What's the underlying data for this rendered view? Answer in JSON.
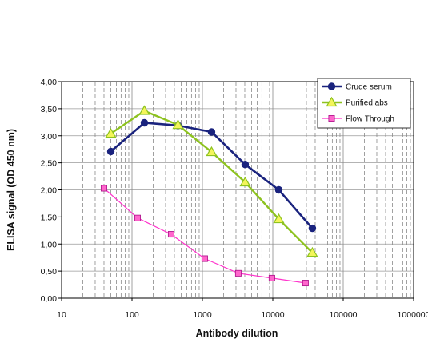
{
  "chart_data": {
    "type": "line",
    "title": "",
    "xlabel": "Antibody dilution",
    "ylabel": "ELISA signal (OD 450 nm)",
    "x_scale": "log",
    "xlim": [
      10,
      1000000
    ],
    "ylim": [
      0,
      4
    ],
    "x_ticks": [
      {
        "value": 10,
        "label": "10"
      },
      {
        "value": 100,
        "label": "100"
      },
      {
        "value": 1000,
        "label": "1000"
      },
      {
        "value": 10000,
        "label": "10000"
      },
      {
        "value": 100000,
        "label": "100000"
      },
      {
        "value": 1000000,
        "label": "1000000"
      }
    ],
    "y_ticks": [
      {
        "value": 0,
        "label": "0,00"
      },
      {
        "value": 0.5,
        "label": "0,50"
      },
      {
        "value": 1.0,
        "label": "1,00"
      },
      {
        "value": 1.5,
        "label": "1,50"
      },
      {
        "value": 2.0,
        "label": "2,00"
      },
      {
        "value": 2.5,
        "label": "2,50"
      },
      {
        "value": 3.0,
        "label": "3,00"
      },
      {
        "value": 3.5,
        "label": "3,50"
      },
      {
        "value": 4.0,
        "label": "4,00"
      }
    ],
    "grid": {
      "x_major": true,
      "x_minor": true,
      "y_major": true
    },
    "legend_position": "top-right",
    "series": [
      {
        "name": "Crude serum",
        "color": "#1a237e",
        "marker": "circle",
        "points": [
          {
            "x": 50,
            "y": 2.71
          },
          {
            "x": 150,
            "y": 3.24
          },
          {
            "x": 450,
            "y": 3.19
          },
          {
            "x": 1350,
            "y": 3.07
          },
          {
            "x": 4050,
            "y": 2.47
          },
          {
            "x": 12150,
            "y": 2.0
          },
          {
            "x": 36450,
            "y": 1.29
          }
        ]
      },
      {
        "name": "Purified abs",
        "color": "#8dc21f",
        "marker_fill": "#f3f55a",
        "marker": "triangle",
        "points": [
          {
            "x": 50,
            "y": 3.04
          },
          {
            "x": 150,
            "y": 3.46
          },
          {
            "x": 450,
            "y": 3.2
          },
          {
            "x": 1350,
            "y": 2.7
          },
          {
            "x": 4050,
            "y": 2.14
          },
          {
            "x": 12150,
            "y": 1.46
          },
          {
            "x": 36450,
            "y": 0.84
          }
        ]
      },
      {
        "name": "Flow  Through",
        "color": "#ff33cc",
        "marker_fill": "#ff66cc",
        "marker": "square",
        "points": [
          {
            "x": 40,
            "y": 2.03
          },
          {
            "x": 120,
            "y": 1.48
          },
          {
            "x": 360,
            "y": 1.18
          },
          {
            "x": 1080,
            "y": 0.73
          },
          {
            "x": 3240,
            "y": 0.46
          },
          {
            "x": 9720,
            "y": 0.37
          },
          {
            "x": 29160,
            "y": 0.28
          }
        ]
      }
    ]
  }
}
